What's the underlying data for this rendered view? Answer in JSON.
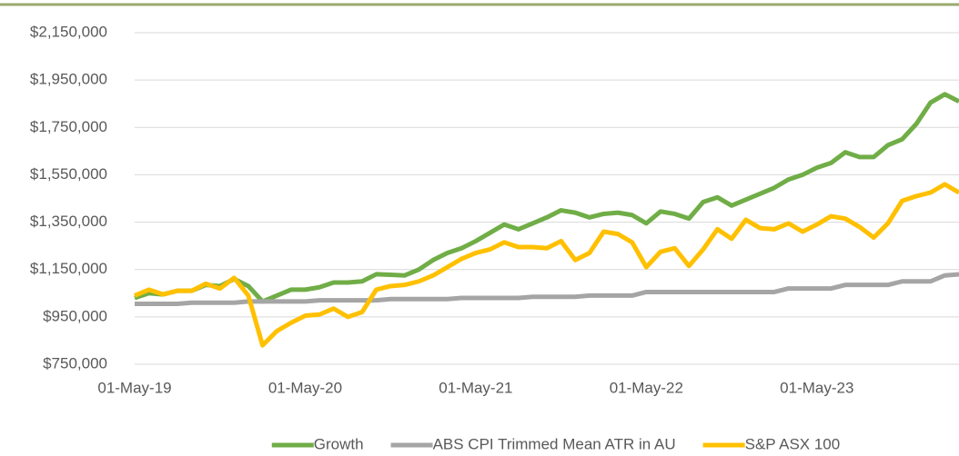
{
  "chart_data": {
    "type": "line",
    "categories": [
      "01-May-19",
      null,
      null,
      null,
      null,
      null,
      null,
      null,
      null,
      null,
      null,
      null,
      "01-May-20",
      null,
      null,
      null,
      null,
      null,
      null,
      null,
      null,
      null,
      null,
      null,
      "01-May-21",
      null,
      null,
      null,
      null,
      null,
      null,
      null,
      null,
      null,
      null,
      null,
      "01-May-22",
      null,
      null,
      null,
      null,
      null,
      null,
      null,
      null,
      null,
      null,
      null,
      "01-May-23",
      null,
      null,
      null,
      null,
      null,
      null,
      null,
      null,
      null,
      null
    ],
    "series": [
      {
        "name": "Growth",
        "color": "#70ad47",
        "values": [
          1030000,
          1050000,
          1045000,
          1060000,
          1060000,
          1085000,
          1080000,
          1110000,
          1080000,
          1015000,
          1040000,
          1065000,
          1065000,
          1075000,
          1095000,
          1095000,
          1100000,
          1130000,
          1128000,
          1125000,
          1150000,
          1190000,
          1220000,
          1240000,
          1270000,
          1305000,
          1340000,
          1320000,
          1345000,
          1370000,
          1400000,
          1390000,
          1370000,
          1385000,
          1390000,
          1380000,
          1345000,
          1395000,
          1385000,
          1365000,
          1435000,
          1455000,
          1420000,
          1445000,
          1470000,
          1495000,
          1530000,
          1550000,
          1580000,
          1600000,
          1645000,
          1625000,
          1625000,
          1675000,
          1700000,
          1765000,
          1855000,
          1890000,
          1860000
        ]
      },
      {
        "name": "ABS CPI Trimmed Mean ATR in AU",
        "color": "#a5a5a5",
        "values": [
          1005000,
          1005000,
          1005000,
          1005000,
          1010000,
          1010000,
          1010000,
          1010000,
          1015000,
          1015000,
          1015000,
          1015000,
          1015000,
          1020000,
          1020000,
          1020000,
          1020000,
          1020000,
          1025000,
          1025000,
          1025000,
          1025000,
          1025000,
          1030000,
          1030000,
          1030000,
          1030000,
          1030000,
          1035000,
          1035000,
          1035000,
          1035000,
          1040000,
          1040000,
          1040000,
          1040000,
          1055000,
          1055000,
          1055000,
          1055000,
          1055000,
          1055000,
          1055000,
          1055000,
          1055000,
          1055000,
          1070000,
          1070000,
          1070000,
          1070000,
          1085000,
          1085000,
          1085000,
          1085000,
          1100000,
          1100000,
          1100000,
          1125000,
          1130000
        ]
      },
      {
        "name": "S&P ASX 100",
        "color": "#ffc000",
        "values": [
          1040000,
          1065000,
          1045000,
          1060000,
          1060000,
          1090000,
          1070000,
          1115000,
          1040000,
          830000,
          890000,
          925000,
          955000,
          960000,
          985000,
          950000,
          970000,
          1065000,
          1080000,
          1085000,
          1100000,
          1125000,
          1160000,
          1195000,
          1220000,
          1235000,
          1265000,
          1245000,
          1245000,
          1240000,
          1270000,
          1190000,
          1220000,
          1310000,
          1300000,
          1265000,
          1160000,
          1225000,
          1240000,
          1165000,
          1235000,
          1320000,
          1280000,
          1360000,
          1325000,
          1320000,
          1345000,
          1310000,
          1340000,
          1375000,
          1365000,
          1330000,
          1285000,
          1345000,
          1440000,
          1460000,
          1475000,
          1510000,
          1475000
        ]
      }
    ],
    "ylim": [
      750000,
      2150000
    ],
    "yticks": [
      {
        "value": 750000,
        "label": "$750,000"
      },
      {
        "value": 950000,
        "label": "$950,000"
      },
      {
        "value": 1150000,
        "label": "$1,150,000"
      },
      {
        "value": 1350000,
        "label": "$1,350,000"
      },
      {
        "value": 1550000,
        "label": "$1,550,000"
      },
      {
        "value": 1750000,
        "label": "$1,750,000"
      },
      {
        "value": 1950000,
        "label": "$1,950,000"
      },
      {
        "value": 2150000,
        "label": "$2,150,000"
      }
    ],
    "grid": true,
    "legend": "bottom"
  }
}
